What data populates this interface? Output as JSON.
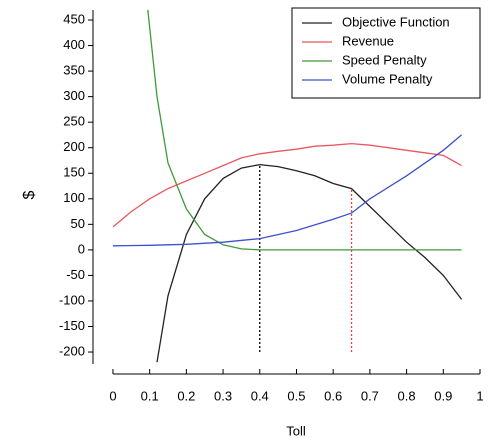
{
  "chart_data": {
    "type": "line",
    "x_label": "Toll",
    "y_label": "$",
    "xlim": [
      -0.05,
      1.0
    ],
    "xticks": [
      0,
      0.1,
      0.2,
      0.3,
      0.4,
      0.5,
      0.6,
      0.7,
      0.8,
      0.9,
      1
    ],
    "ylim": [
      -225,
      470
    ],
    "yticks": [
      -200,
      -150,
      -100,
      -50,
      0,
      50,
      100,
      150,
      200,
      250,
      300,
      350,
      400,
      450
    ],
    "legend": "upper right",
    "series": [
      {
        "name": "Objective Function",
        "color": "#222222",
        "x": [
          0.12,
          0.15,
          0.2,
          0.25,
          0.3,
          0.35,
          0.4,
          0.45,
          0.5,
          0.55,
          0.6,
          0.65,
          0.7,
          0.75,
          0.8,
          0.85,
          0.9,
          0.95
        ],
        "values": [
          -220,
          -90,
          30,
          100,
          140,
          160,
          167,
          163,
          155,
          145,
          130,
          120,
          85,
          50,
          15,
          -15,
          -50,
          -97
        ]
      },
      {
        "name": "Revenue",
        "color": "#e8585e",
        "x": [
          0,
          0.05,
          0.1,
          0.15,
          0.2,
          0.25,
          0.3,
          0.35,
          0.4,
          0.45,
          0.5,
          0.55,
          0.6,
          0.65,
          0.7,
          0.75,
          0.8,
          0.85,
          0.9,
          0.95
        ],
        "values": [
          45,
          75,
          100,
          120,
          135,
          150,
          165,
          180,
          188,
          193,
          197,
          203,
          205,
          208,
          205,
          200,
          195,
          190,
          185,
          165
        ]
      },
      {
        "name": "Speed Penalty",
        "color": "#3f9a3a",
        "x": [
          0.095,
          0.12,
          0.15,
          0.2,
          0.25,
          0.3,
          0.35,
          0.4,
          0.5,
          0.6,
          0.7,
          0.8,
          0.9,
          0.95
        ],
        "values": [
          470,
          300,
          170,
          80,
          30,
          10,
          2,
          0,
          0,
          0,
          0,
          0,
          0,
          0
        ]
      },
      {
        "name": "Volume Penalty",
        "color": "#3f4fcf",
        "x": [
          0,
          0.1,
          0.2,
          0.3,
          0.4,
          0.5,
          0.6,
          0.65,
          0.7,
          0.8,
          0.9,
          0.95
        ],
        "values": [
          8,
          9,
          11,
          15,
          22,
          38,
          60,
          72,
          100,
          145,
          195,
          225
        ]
      }
    ],
    "vlines": [
      {
        "x": 0.4,
        "y": [
          -200,
          167
        ],
        "color": "#000000"
      },
      {
        "x": 0.65,
        "y": [
          -200,
          120
        ],
        "color": "#e8404a"
      }
    ]
  }
}
